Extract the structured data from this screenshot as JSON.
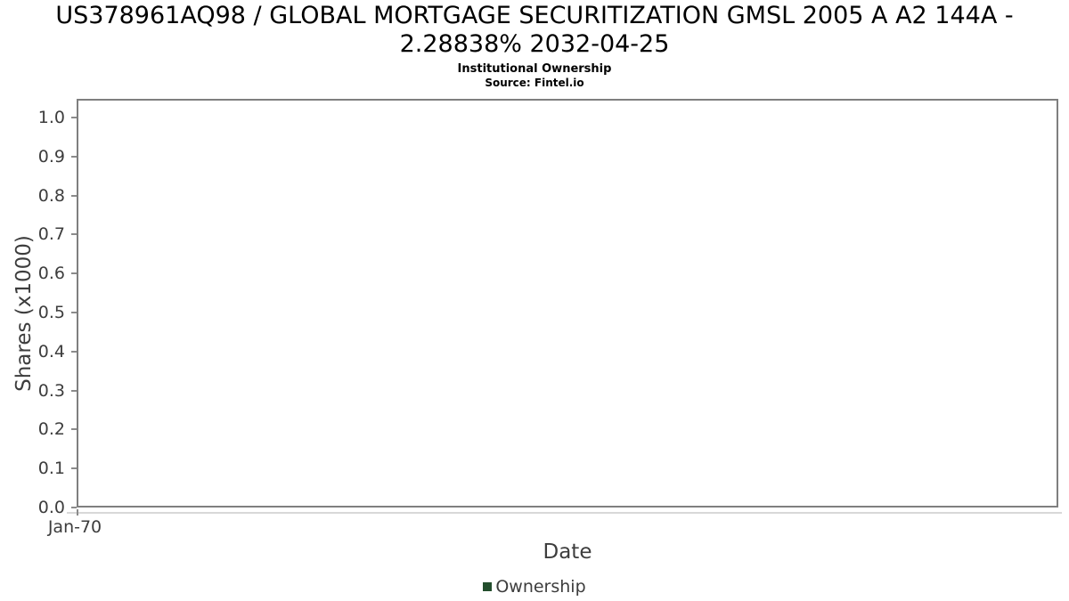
{
  "header": {
    "title_line1": "US378961AQ98 / GLOBAL MORTGAGE SECURITIZATION GMSL 2005 A A2 144A -",
    "title_line2": "2.28838% 2032-04-25",
    "subtitle": "Institutional Ownership",
    "source": "Source: Fintel.io"
  },
  "chart_data": {
    "type": "line",
    "title": "US378961AQ98 / GLOBAL MORTGAGE SECURITIZATION GMSL 2005 A A2 144A - 2.28838% 2032-04-25",
    "subtitle": "Institutional Ownership",
    "source": "Source: Fintel.io",
    "xlabel": "Date",
    "ylabel": "Shares (x1000)",
    "x_tick_labels": [
      "Jan-70"
    ],
    "y_tick_labels": [
      "0.0",
      "0.1",
      "0.2",
      "0.3",
      "0.4",
      "0.5",
      "0.6",
      "0.7",
      "0.8",
      "0.9",
      "1.0"
    ],
    "ylim": [
      0.0,
      1.045
    ],
    "grid": "horizontal",
    "legend_position": "bottom-center",
    "series": [
      {
        "name": "Ownership",
        "x": [],
        "values": []
      }
    ]
  },
  "legend": {
    "entries": [
      {
        "label": "Ownership",
        "color": "#234e2d"
      }
    ]
  },
  "colors": {
    "plot_border": "#7f7f7f",
    "gridline": "#e7e7e7",
    "tick_mark": "#8b8b8b",
    "axis_text": "#3d3d3d",
    "title_text": "#000000",
    "legend_marker": "#234e2d"
  }
}
